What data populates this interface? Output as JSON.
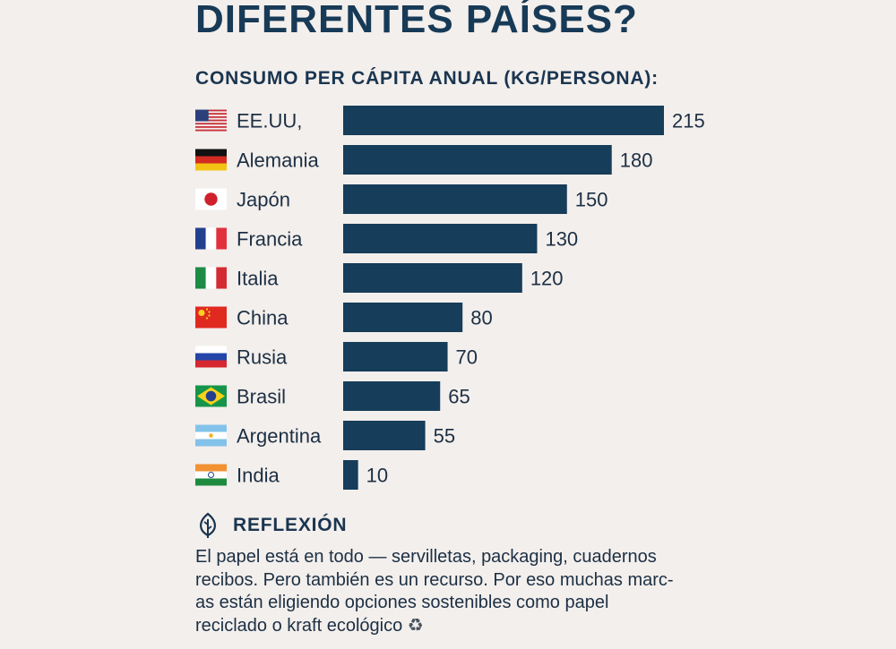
{
  "header": {
    "title": "DIFERENTES PAÍSES?",
    "subtitle": "CONSUMO PER CÁPITA ANUAL (KG/PERSONA):"
  },
  "chart_data": {
    "type": "bar",
    "orientation": "horizontal",
    "categories": [
      "EE.UU,",
      "Alemania",
      "Japón",
      "Francia",
      "Italia",
      "China",
      "Rusia",
      "Brasil",
      "Argentina",
      "India"
    ],
    "values": [
      215,
      180,
      150,
      130,
      120,
      80,
      70,
      65,
      55,
      10
    ],
    "flags": [
      "usa-flag-icon",
      "germany-flag-icon",
      "japan-flag-icon",
      "france-flag-icon",
      "italy-flag-icon",
      "china-flag-icon",
      "russia-flag-icon",
      "brazil-flag-icon",
      "argentina-flag-icon",
      "india-flag-icon"
    ],
    "bar_color": "#163d5a",
    "title": "CONSUMO PER CÁPITA ANUAL (KG/PERSONA):",
    "xlabel": "",
    "ylabel": "",
    "xlim": [
      0,
      215
    ],
    "grid": false,
    "legend": "none",
    "data_labels": true
  },
  "reflection": {
    "icon": "leaf-icon",
    "title": "REFLEXIÓN",
    "lines": [
      "El papel está en todo — servilletas, packaging, cuadernos",
      "recibos. Pero también es un recurso. Por eso muchas marc-",
      "as están eligiendo opciones sostenibles como papel",
      "reciclado o kraft ecológico"
    ],
    "end_icon": "recycle-icon",
    "end_glyph": "♻"
  },
  "colors": {
    "background": "#f3efec",
    "bar": "#163d5a",
    "heading": "#173a57",
    "text": "#1c2f44"
  }
}
